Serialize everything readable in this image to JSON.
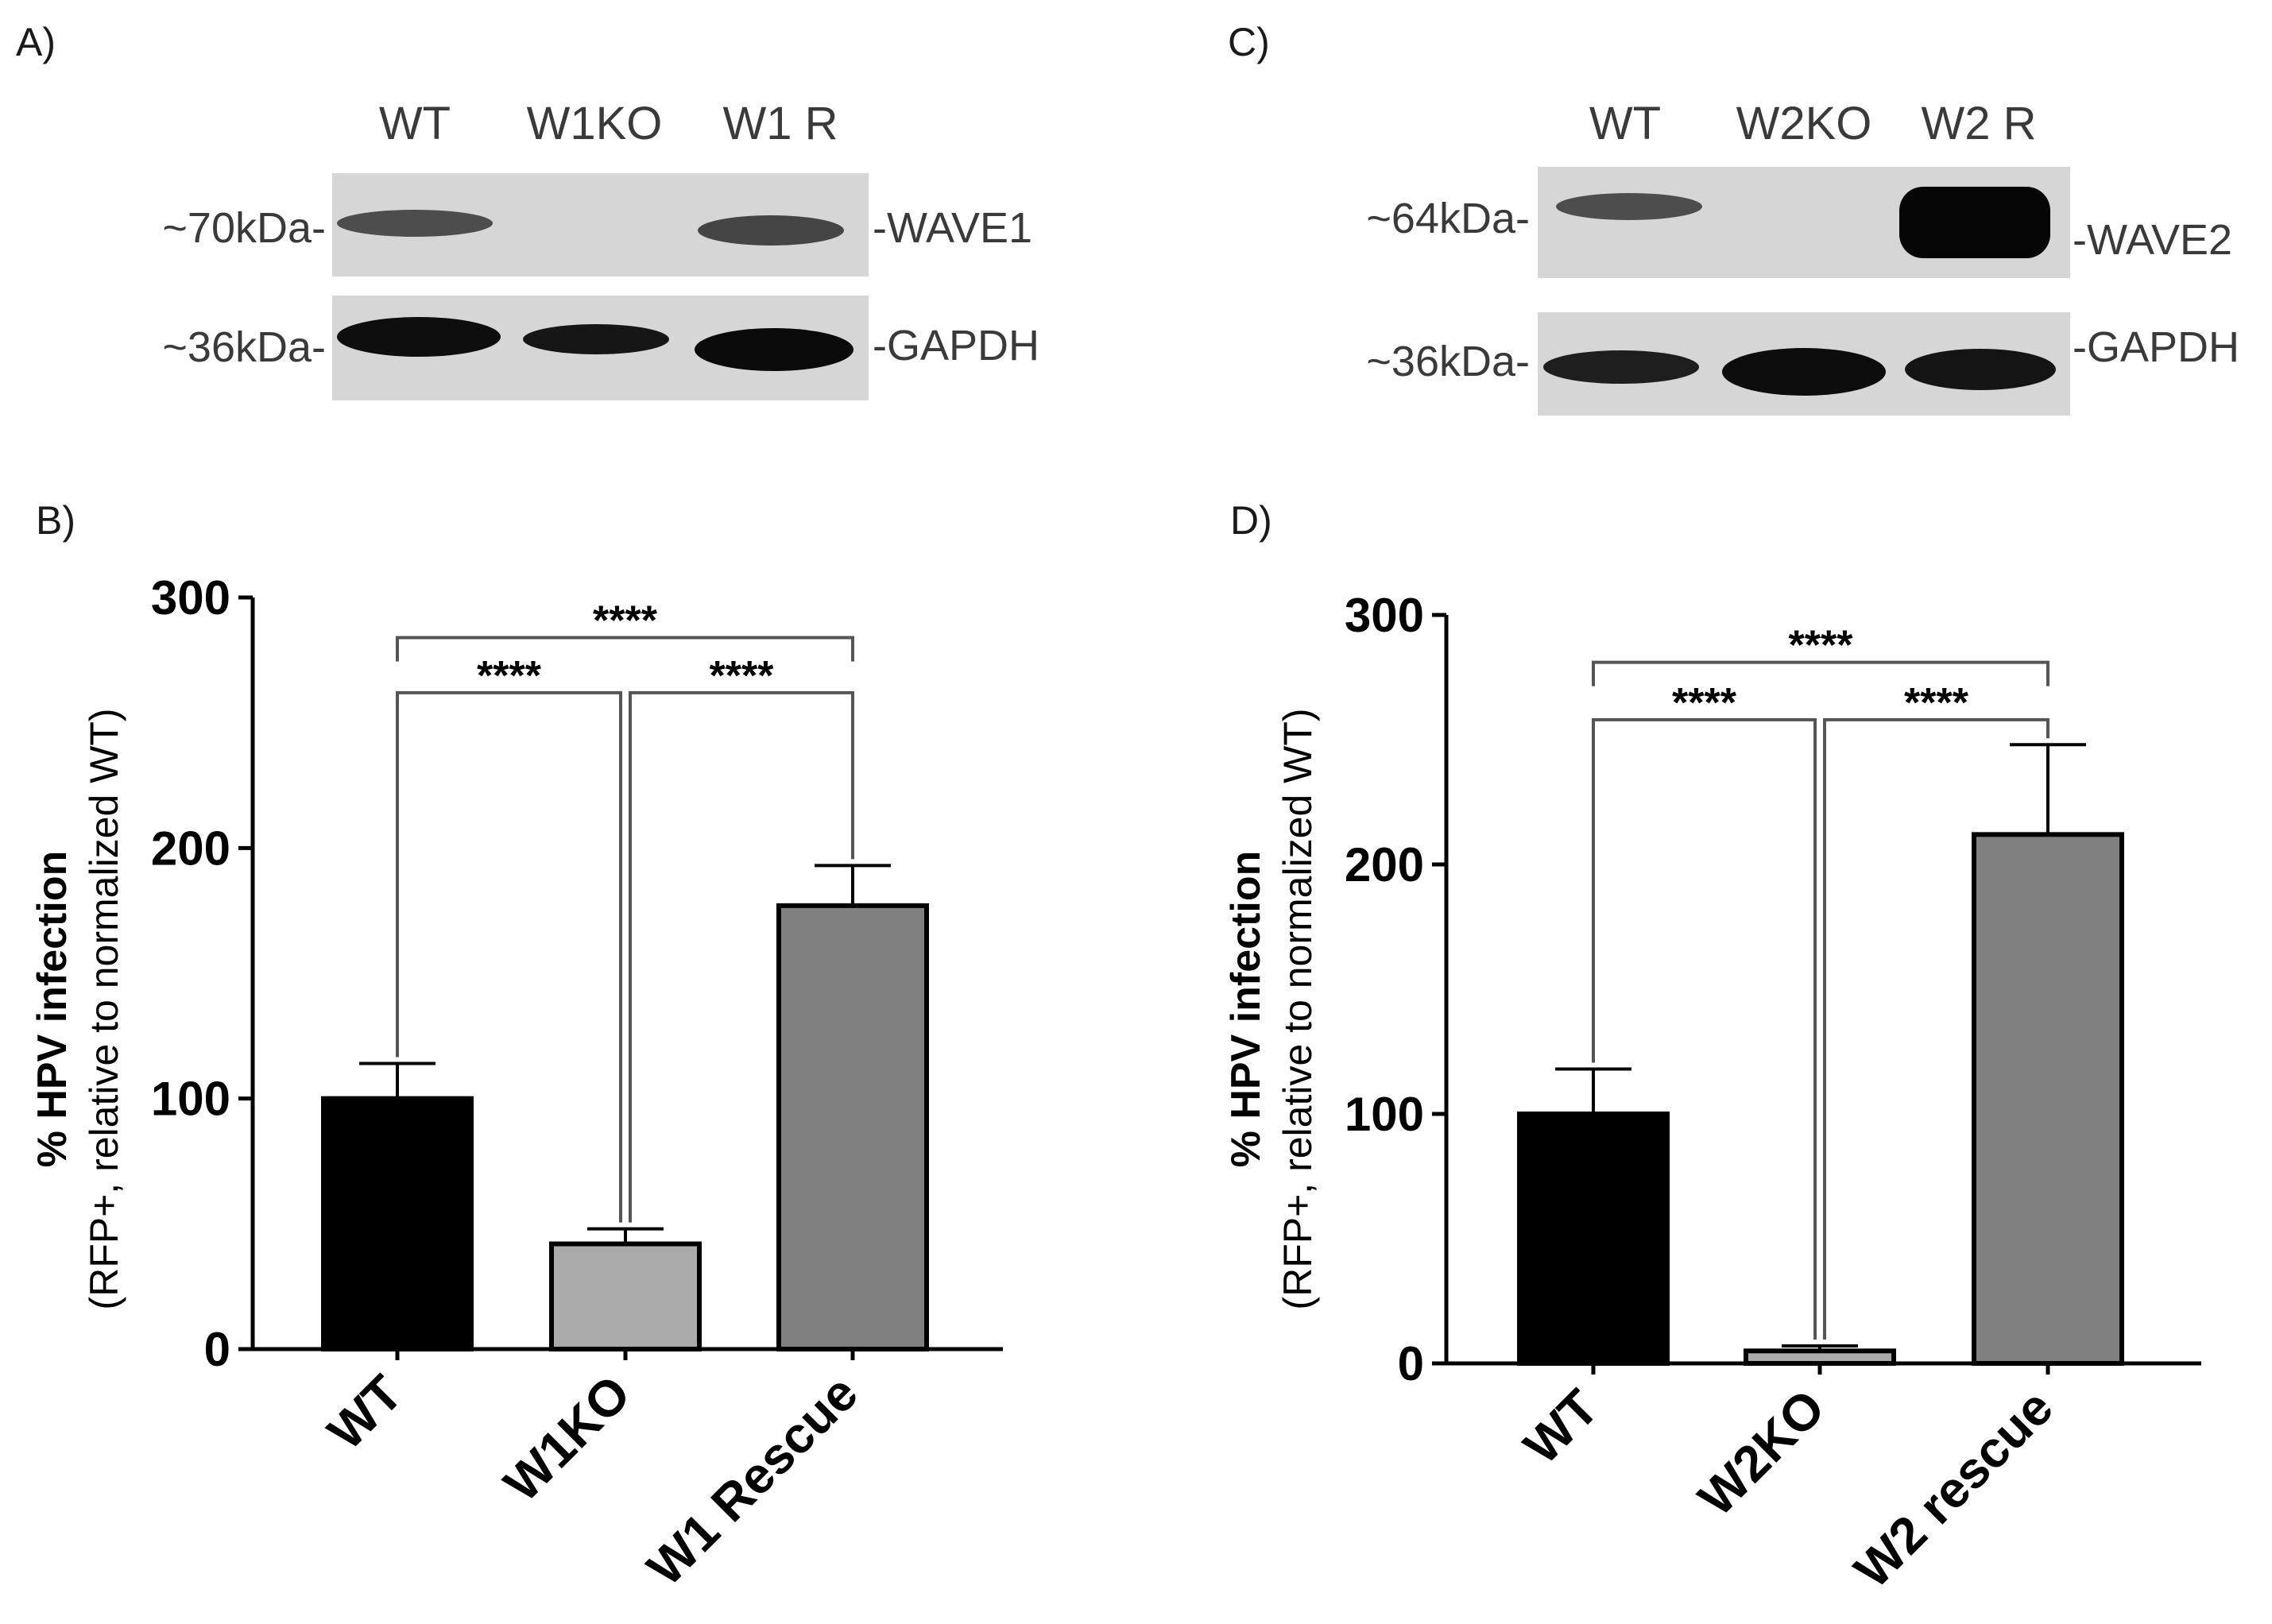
{
  "panels": {
    "a": {
      "label": "A)",
      "lanes": [
        "WT",
        "W1KO",
        "W1 R"
      ],
      "rows": [
        {
          "mw": "~70kDa-",
          "protein": "-WAVE1",
          "band_intensity": [
            0.55,
            0.0,
            0.65
          ]
        },
        {
          "mw": "~36kDa-",
          "protein": "-GAPDH",
          "band_intensity": [
            0.95,
            0.85,
            1.0
          ]
        }
      ]
    },
    "c": {
      "label": "C)",
      "lanes": [
        "WT",
        "W2KO",
        "W2 R"
      ],
      "rows": [
        {
          "mw": "~64kDa-",
          "protein": "-WAVE2",
          "band_intensity": [
            0.5,
            0.0,
            1.0
          ]
        },
        {
          "mw": "~36kDa-",
          "protein": "-GAPDH",
          "band_intensity": [
            0.7,
            0.95,
            0.8
          ]
        }
      ]
    }
  },
  "chart_data": [
    {
      "panel_label": "B)",
      "type": "bar",
      "categories": [
        "WT",
        "W1KO",
        "W1 Rescue"
      ],
      "values": [
        100,
        42,
        177
      ],
      "errors": [
        14,
        6,
        16
      ],
      "colors": [
        "#000000",
        "#aaaaaa",
        "#808080"
      ],
      "ylabel": "% HPV infection",
      "ylabel_sub": "(RFP+, relative to normalized WT)",
      "ylim": [
        0,
        300
      ],
      "yticks": [
        0,
        100,
        200,
        300
      ],
      "significance": [
        {
          "from": 0,
          "to": 1,
          "label": "****",
          "level": 262
        },
        {
          "from": 1,
          "to": 2,
          "label": "****",
          "level": 262
        },
        {
          "from": 0,
          "to": 2,
          "label": "****",
          "level": 284
        }
      ]
    },
    {
      "panel_label": "D)",
      "type": "bar",
      "categories": [
        "WT",
        "W2KO",
        "W2 rescue"
      ],
      "values": [
        100,
        5,
        212
      ],
      "errors": [
        18,
        2,
        36
      ],
      "colors": [
        "#000000",
        "#aaaaaa",
        "#808080"
      ],
      "ylabel": "% HPV infection",
      "ylabel_sub": "(RFP+, relative to normalized WT)",
      "ylim": [
        0,
        300
      ],
      "yticks": [
        0,
        100,
        200,
        300
      ],
      "significance": [
        {
          "from": 0,
          "to": 1,
          "label": "****",
          "level": 258
        },
        {
          "from": 1,
          "to": 2,
          "label": "****",
          "level": 258
        },
        {
          "from": 0,
          "to": 2,
          "label": "****",
          "level": 281
        }
      ]
    }
  ]
}
